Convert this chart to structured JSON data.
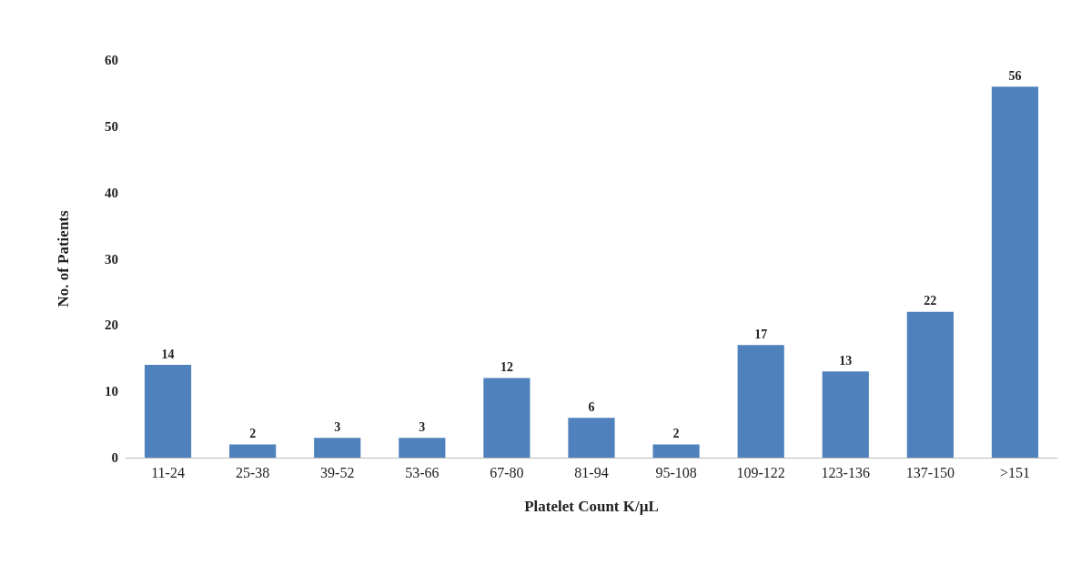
{
  "chart_data": {
    "type": "bar",
    "xlabel": "Platelet Count K/µL",
    "ylabel": "No. of Patients",
    "categories": [
      "11-24",
      "25-38",
      "39-52",
      "53-66",
      "67-80",
      "81-94",
      "95-108",
      "109-122",
      "123-136",
      "137-150",
      ">151"
    ],
    "values": [
      14,
      2,
      3,
      3,
      12,
      6,
      2,
      17,
      13,
      22,
      56
    ],
    "color": "#4f81bd",
    "ylim": [
      0,
      60
    ],
    "yticks": [
      0,
      10,
      20,
      30,
      40,
      50,
      60
    ],
    "grid": false,
    "data_labels": true
  }
}
